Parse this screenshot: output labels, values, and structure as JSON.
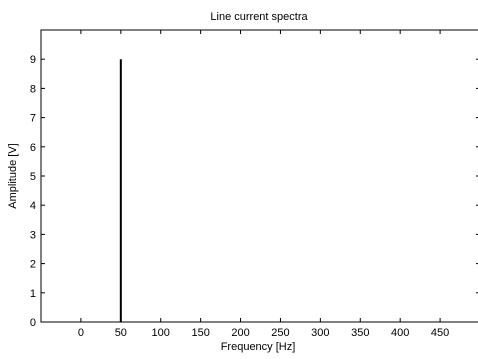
{
  "chart_data": {
    "type": "bar",
    "title": "Line current spectra",
    "xlabel": "Frequency [Hz]",
    "ylabel": "Amplitude [V]",
    "xlim": [
      -50,
      500
    ],
    "ylim": [
      0,
      10
    ],
    "xticks": [
      0,
      50,
      100,
      150,
      200,
      250,
      300,
      350,
      400,
      450
    ],
    "yticks": [
      0,
      1,
      2,
      3,
      4,
      5,
      6,
      7,
      8,
      9
    ],
    "series": [
      {
        "x": [
          50
        ],
        "values": [
          9
        ],
        "color": "#000000"
      }
    ],
    "grid": false,
    "legend": "none"
  }
}
